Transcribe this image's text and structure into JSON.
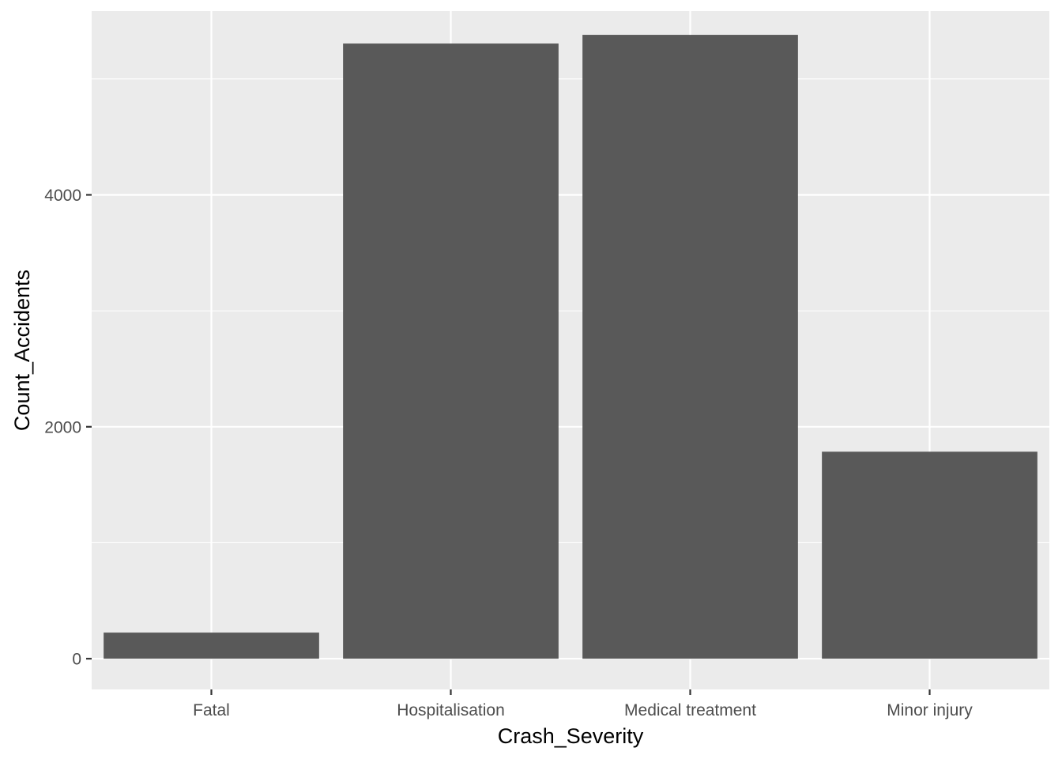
{
  "chart_data": {
    "type": "bar",
    "title": "",
    "xlabel": "Crash_Severity",
    "ylabel": "Count_Accidents",
    "categories": [
      "Fatal",
      "Hospitalisation",
      "Medical treatment",
      "Minor injury"
    ],
    "values": [
      225,
      5305,
      5380,
      1785
    ],
    "ylim": [
      -265,
      5585
    ],
    "y_ticks": [
      0,
      2000,
      4000
    ],
    "y_tick_labels": [
      "0",
      "2000",
      "4000"
    ],
    "y_minor_ticks": [
      1000,
      3000,
      5000
    ],
    "grid": true,
    "legend": "none",
    "colors": {
      "bar": "#595959",
      "panel": "#EBEBEB",
      "grid": "#FFFFFF",
      "tick_label": "#4D4D4D"
    }
  }
}
